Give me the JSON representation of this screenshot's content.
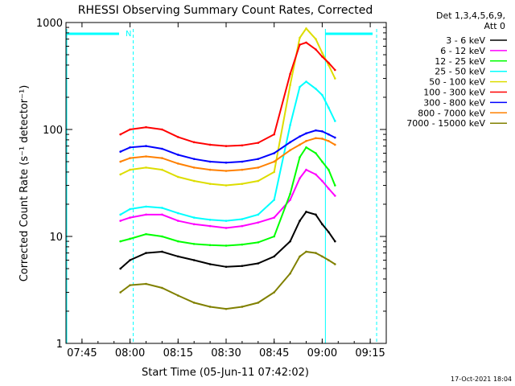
{
  "chart_data": {
    "type": "line",
    "title": "RHESSI Observing Summary Count Rates, Corrected",
    "xlabel": "Start Time (05-Jun-11 07:42:02)",
    "ylabel": "Corrected Count Rate (s⁻¹ detector⁻¹)",
    "yscale": "log",
    "ylim": [
      1,
      1000
    ],
    "xlim": [
      "07:40",
      "09:20"
    ],
    "x_ticks": [
      "07:45",
      "08:00",
      "08:15",
      "08:30",
      "08:45",
      "09:00",
      "09:15"
    ],
    "y_ticks": [
      "1",
      "10",
      "100",
      "1000"
    ],
    "legend_title": [
      "Det 1,3,4,5,6,9,",
      "Att 0"
    ],
    "legend_position": "right",
    "timestamp": "17-Oct-2021 18:04",
    "attenuator_label": "N",
    "series": [
      {
        "name": "3 - 6 keV",
        "color": "#000000",
        "x": [
          "07:57",
          "08:00",
          "08:05",
          "08:10",
          "08:15",
          "08:20",
          "08:25",
          "08:30",
          "08:35",
          "08:40",
          "08:45",
          "08:50",
          "08:53",
          "08:55",
          "08:58",
          "09:00",
          "09:02",
          "09:04"
        ],
        "values": [
          5.0,
          6.0,
          7.0,
          7.2,
          6.5,
          6.0,
          5.5,
          5.2,
          5.3,
          5.6,
          6.5,
          9.0,
          14.0,
          17.0,
          16.0,
          13.0,
          11.0,
          9.0
        ]
      },
      {
        "name": "6 - 12 keV",
        "color": "#ff00ff",
        "x": [
          "07:57",
          "08:00",
          "08:05",
          "08:10",
          "08:15",
          "08:20",
          "08:25",
          "08:30",
          "08:35",
          "08:40",
          "08:45",
          "08:50",
          "08:53",
          "08:55",
          "08:58",
          "09:00",
          "09:02",
          "09:04"
        ],
        "values": [
          14,
          15,
          16,
          16,
          14,
          13,
          12.5,
          12,
          12.5,
          13.5,
          15,
          22,
          35,
          42,
          38,
          33,
          28,
          24
        ]
      },
      {
        "name": "12 - 25 keV",
        "color": "#00ff00",
        "x": [
          "07:57",
          "08:00",
          "08:05",
          "08:10",
          "08:15",
          "08:20",
          "08:25",
          "08:30",
          "08:35",
          "08:40",
          "08:45",
          "08:50",
          "08:53",
          "08:55",
          "08:58",
          "09:00",
          "09:02",
          "09:04"
        ],
        "values": [
          9,
          9.5,
          10.5,
          10,
          9,
          8.5,
          8.3,
          8.2,
          8.4,
          8.8,
          10,
          25,
          55,
          68,
          60,
          50,
          42,
          30
        ]
      },
      {
        "name": "25 - 50 keV",
        "color": "#00ffff",
        "x": [
          "07:57",
          "08:00",
          "08:05",
          "08:10",
          "08:15",
          "08:20",
          "08:25",
          "08:30",
          "08:35",
          "08:40",
          "08:45",
          "08:50",
          "08:53",
          "08:55",
          "08:58",
          "09:00",
          "09:02",
          "09:04"
        ],
        "values": [
          16,
          18,
          19,
          18.5,
          16.5,
          15,
          14.3,
          14,
          14.5,
          16,
          22,
          110,
          250,
          280,
          240,
          210,
          160,
          120
        ]
      },
      {
        "name": "50 - 100 keV",
        "color": "#dddd00",
        "x": [
          "07:57",
          "08:00",
          "08:05",
          "08:10",
          "08:15",
          "08:20",
          "08:25",
          "08:30",
          "08:35",
          "08:40",
          "08:45",
          "08:50",
          "08:53",
          "08:55",
          "08:58",
          "09:00",
          "09:02",
          "09:04"
        ],
        "values": [
          38,
          42,
          44,
          42,
          36,
          33,
          31,
          30,
          31,
          33,
          40,
          260,
          720,
          880,
          700,
          520,
          400,
          300
        ]
      },
      {
        "name": "100 - 300 keV",
        "color": "#ff0000",
        "x": [
          "07:57",
          "08:00",
          "08:05",
          "08:10",
          "08:15",
          "08:20",
          "08:25",
          "08:30",
          "08:35",
          "08:40",
          "08:45",
          "08:50",
          "08:53",
          "08:55",
          "08:58",
          "09:00",
          "09:02",
          "09:04"
        ],
        "values": [
          90,
          100,
          105,
          100,
          85,
          76,
          72,
          70,
          71,
          75,
          90,
          330,
          620,
          650,
          560,
          480,
          420,
          360
        ]
      },
      {
        "name": "300 - 800 keV",
        "color": "#0000ff",
        "x": [
          "07:57",
          "08:00",
          "08:05",
          "08:10",
          "08:15",
          "08:20",
          "08:25",
          "08:30",
          "08:35",
          "08:40",
          "08:45",
          "08:50",
          "08:53",
          "08:55",
          "08:58",
          "09:00",
          "09:02",
          "09:04"
        ],
        "values": [
          62,
          68,
          70,
          66,
          58,
          53,
          50,
          49,
          50,
          53,
          60,
          76,
          86,
          92,
          98,
          96,
          90,
          84
        ]
      },
      {
        "name": "800 - 7000 keV",
        "color": "#ff8000",
        "x": [
          "07:57",
          "08:00",
          "08:05",
          "08:10",
          "08:15",
          "08:20",
          "08:25",
          "08:30",
          "08:35",
          "08:40",
          "08:45",
          "08:50",
          "08:53",
          "08:55",
          "08:58",
          "09:00",
          "09:02",
          "09:04"
        ],
        "values": [
          50,
          54,
          56,
          54,
          48,
          44,
          42,
          41,
          42,
          44,
          50,
          64,
          72,
          78,
          83,
          82,
          78,
          72
        ]
      },
      {
        "name": "7000 - 15000 keV",
        "color": "#808000",
        "x": [
          "07:57",
          "08:00",
          "08:05",
          "08:10",
          "08:15",
          "08:20",
          "08:25",
          "08:30",
          "08:35",
          "08:40",
          "08:45",
          "08:50",
          "08:53",
          "08:55",
          "08:58",
          "09:00",
          "09:02",
          "09:04"
        ],
        "values": [
          3,
          3.5,
          3.6,
          3.3,
          2.8,
          2.4,
          2.2,
          2.1,
          2.2,
          2.4,
          3.0,
          4.5,
          6.5,
          7.2,
          7.0,
          6.5,
          6.0,
          5.5
        ]
      }
    ]
  }
}
